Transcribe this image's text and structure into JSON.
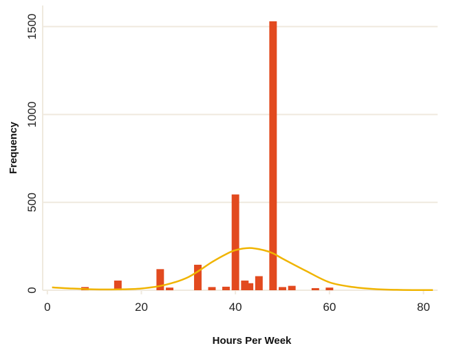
{
  "chart_data": {
    "type": "bar",
    "xlabel": "Hours Per Week",
    "ylabel": "Frequency",
    "xlim": [
      -1,
      83
    ],
    "ylim": [
      0,
      1620
    ],
    "x_ticks": [
      0,
      20,
      40,
      60,
      80
    ],
    "y_ticks": [
      0,
      500,
      1000,
      1500
    ],
    "grid": "horizontal",
    "bars": [
      {
        "x": 8,
        "value": 18
      },
      {
        "x": 15,
        "value": 55
      },
      {
        "x": 24,
        "value": 120
      },
      {
        "x": 26,
        "value": 15
      },
      {
        "x": 32,
        "value": 145
      },
      {
        "x": 35,
        "value": 18
      },
      {
        "x": 38,
        "value": 20
      },
      {
        "x": 40,
        "value": 545
      },
      {
        "x": 42,
        "value": 55
      },
      {
        "x": 43,
        "value": 40
      },
      {
        "x": 45,
        "value": 80
      },
      {
        "x": 48,
        "value": 1530
      },
      {
        "x": 50,
        "value": 18
      },
      {
        "x": 52,
        "value": 25
      },
      {
        "x": 57,
        "value": 12
      },
      {
        "x": 60,
        "value": 15
      }
    ],
    "curve": {
      "x": [
        1,
        5,
        10,
        15,
        20,
        25,
        30,
        35,
        38,
        40,
        43,
        46,
        48,
        50,
        55,
        60,
        65,
        70,
        75,
        80,
        82
      ],
      "value": [
        16,
        10,
        5,
        5,
        10,
        30,
        75,
        160,
        205,
        228,
        240,
        228,
        210,
        180,
        110,
        45,
        18,
        6,
        2,
        1,
        1
      ]
    },
    "colors": {
      "bar": "#E24A1F",
      "curve": "#F0B400",
      "grid": "#EFE9DE",
      "axis": "#EFE9DE",
      "text": "#222222"
    }
  }
}
